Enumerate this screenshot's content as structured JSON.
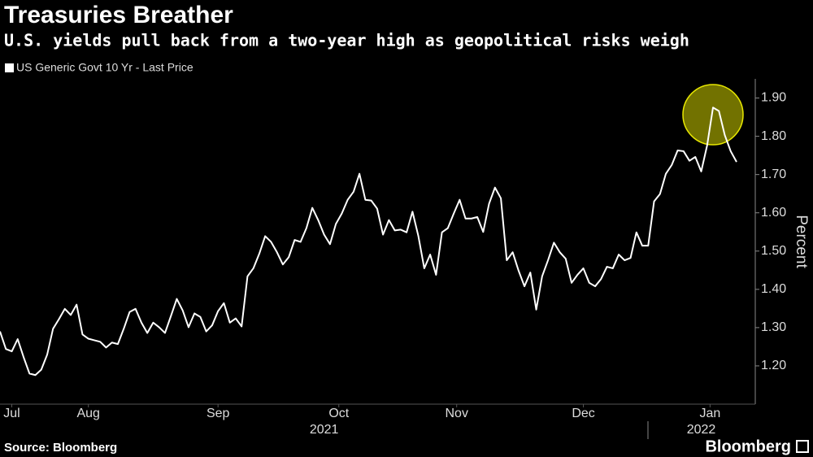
{
  "chart_data": {
    "type": "line",
    "title": "Treasuries Breather",
    "subtitle": "U.S. yields pull back from a two-year high as geopolitical risks weigh",
    "y_label": "Percent",
    "source": "Source: Bloomberg",
    "brand": "Bloomberg",
    "series": [
      {
        "name": "US Generic Govt 10 Yr - Last Price",
        "color": "#ffffff",
        "values": [
          1.29,
          1.244,
          1.238,
          1.27,
          1.223,
          1.18,
          1.176,
          1.19,
          1.229,
          1.297,
          1.322,
          1.349,
          1.333,
          1.36,
          1.282,
          1.271,
          1.267,
          1.263,
          1.248,
          1.261,
          1.257,
          1.297,
          1.341,
          1.349,
          1.313,
          1.286,
          1.313,
          1.301,
          1.286,
          1.33,
          1.375,
          1.345,
          1.301,
          1.337,
          1.328,
          1.29,
          1.306,
          1.343,
          1.364,
          1.313,
          1.324,
          1.303,
          1.434,
          1.455,
          1.493,
          1.539,
          1.524,
          1.497,
          1.465,
          1.484,
          1.529,
          1.524,
          1.56,
          1.613,
          1.581,
          1.543,
          1.518,
          1.571,
          1.598,
          1.634,
          1.655,
          1.702,
          1.634,
          1.632,
          1.611,
          1.543,
          1.581,
          1.554,
          1.556,
          1.549,
          1.603,
          1.539,
          1.455,
          1.491,
          1.438,
          1.549,
          1.56,
          1.598,
          1.634,
          1.585,
          1.585,
          1.589,
          1.55,
          1.624,
          1.666,
          1.638,
          1.476,
          1.497,
          1.449,
          1.408,
          1.444,
          1.347,
          1.434,
          1.476,
          1.522,
          1.497,
          1.48,
          1.417,
          1.438,
          1.455,
          1.417,
          1.408,
          1.427,
          1.459,
          1.455,
          1.491,
          1.476,
          1.482,
          1.549,
          1.514,
          1.514,
          1.63,
          1.649,
          1.702,
          1.725,
          1.763,
          1.761,
          1.736,
          1.746,
          1.708,
          1.776,
          1.875,
          1.866,
          1.803,
          1.761,
          1.733
        ]
      }
    ],
    "xlim": [
      0,
      125
    ],
    "xticks": [
      {
        "value": 2,
        "label": "Jul"
      },
      {
        "value": 15,
        "label": "Aug"
      },
      {
        "value": 37,
        "label": "Sep"
      },
      {
        "value": 57.5,
        "label": "Oct"
      },
      {
        "value": 77.5,
        "label": "Nov"
      },
      {
        "value": 99,
        "label": "Dec"
      },
      {
        "value": 120.5,
        "label": "Jan"
      }
    ],
    "year_ticks": [
      {
        "value": 55,
        "label": "2021"
      },
      {
        "value": 119,
        "label": "2022"
      }
    ],
    "ylim": [
      1.1,
      1.95
    ],
    "yticks": [
      {
        "value": 1.2,
        "label": "1.20"
      },
      {
        "value": 1.3,
        "label": "1.30"
      },
      {
        "value": 1.4,
        "label": "1.40"
      },
      {
        "value": 1.5,
        "label": "1.50"
      },
      {
        "value": 1.6,
        "label": "1.60"
      },
      {
        "value": 1.7,
        "label": "1.70"
      },
      {
        "value": 1.8,
        "label": "1.80"
      },
      {
        "value": 1.9,
        "label": "1.90"
      }
    ]
  }
}
